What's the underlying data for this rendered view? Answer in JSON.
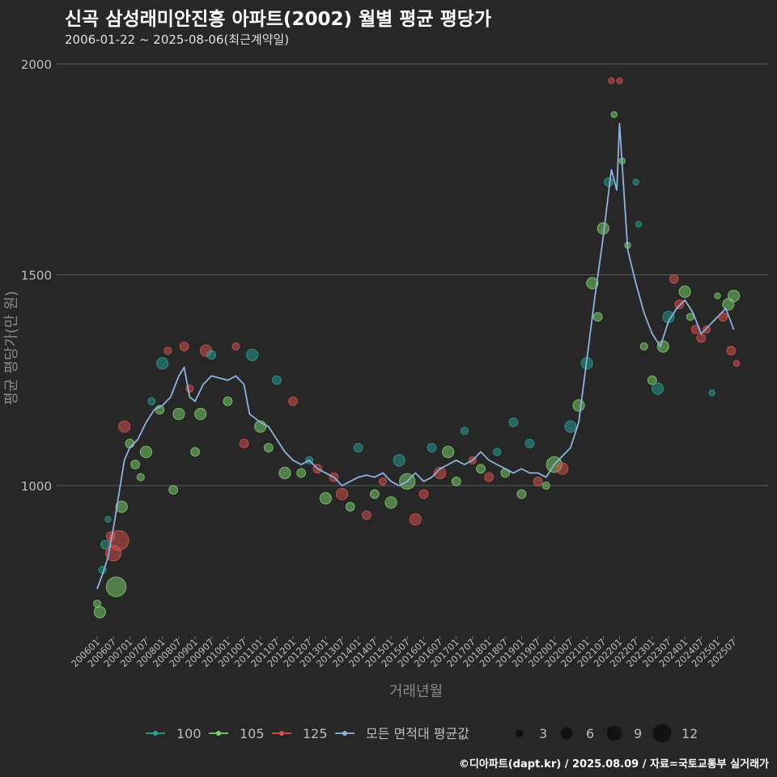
{
  "chart_data": {
    "type": "scatter",
    "title": "신곡 삼성래미안진흥 아파트(2002) 월별 평균 평당가",
    "subtitle": "2006-01-22 ~ 2025-08-06(최근계약일)",
    "xlabel": "거래년월",
    "ylabel": "평균 평당가(만 원)",
    "ylim": [
      650,
      2000
    ],
    "yticks": [
      1000,
      1500,
      2000
    ],
    "xticks": [
      "200601",
      "200607",
      "200701",
      "200707",
      "200801",
      "200807",
      "200901",
      "200907",
      "201001",
      "201007",
      "201101",
      "201107",
      "201201",
      "201207",
      "201301",
      "201307",
      "201401",
      "201407",
      "201501",
      "201507",
      "201601",
      "201607",
      "201701",
      "201707",
      "201801",
      "201807",
      "201901",
      "201907",
      "202001",
      "202007",
      "202101",
      "202107",
      "202201",
      "202207",
      "202301",
      "202307",
      "202401",
      "202407",
      "202501",
      "202507"
    ],
    "grid": true,
    "legend": {
      "series": [
        "100",
        "105",
        "125",
        "모든 면적대 평균값"
      ],
      "size_title": "",
      "sizes": [
        "3",
        "6",
        "9",
        "12"
      ],
      "position": "bottom"
    },
    "colors": {
      "100": "#2aa198",
      "105": "#7fd36f",
      "125": "#d9534f",
      "avg": "#8fb3dd"
    },
    "avg_line": [
      {
        "x": "200601",
        "y": 755
      },
      {
        "x": "200603",
        "y": 790
      },
      {
        "x": "200605",
        "y": 830
      },
      {
        "x": "200607",
        "y": 900
      },
      {
        "x": "200609",
        "y": 980
      },
      {
        "x": "200611",
        "y": 1060
      },
      {
        "x": "200701",
        "y": 1090
      },
      {
        "x": "200704",
        "y": 1110
      },
      {
        "x": "200707",
        "y": 1150
      },
      {
        "x": "200710",
        "y": 1180
      },
      {
        "x": "200801",
        "y": 1190
      },
      {
        "x": "200804",
        "y": 1210
      },
      {
        "x": "200807",
        "y": 1260
      },
      {
        "x": "200809",
        "y": 1280
      },
      {
        "x": "200811",
        "y": 1210
      },
      {
        "x": "200901",
        "y": 1200
      },
      {
        "x": "200904",
        "y": 1240
      },
      {
        "x": "200907",
        "y": 1260
      },
      {
        "x": "201001",
        "y": 1250
      },
      {
        "x": "201004",
        "y": 1260
      },
      {
        "x": "201007",
        "y": 1240
      },
      {
        "x": "201009",
        "y": 1170
      },
      {
        "x": "201101",
        "y": 1150
      },
      {
        "x": "201104",
        "y": 1140
      },
      {
        "x": "201107",
        "y": 1110
      },
      {
        "x": "201110",
        "y": 1080
      },
      {
        "x": "201201",
        "y": 1060
      },
      {
        "x": "201204",
        "y": 1050
      },
      {
        "x": "201207",
        "y": 1060
      },
      {
        "x": "201210",
        "y": 1040
      },
      {
        "x": "201301",
        "y": 1030
      },
      {
        "x": "201304",
        "y": 1020
      },
      {
        "x": "201307",
        "y": 1000
      },
      {
        "x": "201310",
        "y": 1010
      },
      {
        "x": "201401",
        "y": 1020
      },
      {
        "x": "201404",
        "y": 1025
      },
      {
        "x": "201407",
        "y": 1020
      },
      {
        "x": "201410",
        "y": 1030
      },
      {
        "x": "201501",
        "y": 1010
      },
      {
        "x": "201504",
        "y": 1000
      },
      {
        "x": "201507",
        "y": 1010
      },
      {
        "x": "201510",
        "y": 1030
      },
      {
        "x": "201601",
        "y": 1010
      },
      {
        "x": "201604",
        "y": 1020
      },
      {
        "x": "201607",
        "y": 1040
      },
      {
        "x": "201610",
        "y": 1050
      },
      {
        "x": "201701",
        "y": 1060
      },
      {
        "x": "201704",
        "y": 1050
      },
      {
        "x": "201707",
        "y": 1060
      },
      {
        "x": "201710",
        "y": 1080
      },
      {
        "x": "201801",
        "y": 1060
      },
      {
        "x": "201804",
        "y": 1050
      },
      {
        "x": "201807",
        "y": 1040
      },
      {
        "x": "201810",
        "y": 1030
      },
      {
        "x": "201901",
        "y": 1040
      },
      {
        "x": "201904",
        "y": 1030
      },
      {
        "x": "201907",
        "y": 1030
      },
      {
        "x": "201910",
        "y": 1020
      },
      {
        "x": "202001",
        "y": 1050
      },
      {
        "x": "202004",
        "y": 1070
      },
      {
        "x": "202007",
        "y": 1090
      },
      {
        "x": "202010",
        "y": 1150
      },
      {
        "x": "202101",
        "y": 1300
      },
      {
        "x": "202104",
        "y": 1450
      },
      {
        "x": "202107",
        "y": 1590
      },
      {
        "x": "202110",
        "y": 1750
      },
      {
        "x": "202112",
        "y": 1700
      },
      {
        "x": "202201",
        "y": 1860
      },
      {
        "x": "202204",
        "y": 1560
      },
      {
        "x": "202207",
        "y": 1480
      },
      {
        "x": "202210",
        "y": 1410
      },
      {
        "x": "202301",
        "y": 1360
      },
      {
        "x": "202304",
        "y": 1330
      },
      {
        "x": "202307",
        "y": 1390
      },
      {
        "x": "202310",
        "y": 1420
      },
      {
        "x": "202401",
        "y": 1440
      },
      {
        "x": "202404",
        "y": 1410
      },
      {
        "x": "202407",
        "y": 1360
      },
      {
        "x": "202410",
        "y": 1380
      },
      {
        "x": "202501",
        "y": 1400
      },
      {
        "x": "202504",
        "y": 1420
      },
      {
        "x": "202507",
        "y": 1370
      }
    ],
    "points": [
      {
        "x": "200601",
        "y": 720,
        "s": "105",
        "n": 3
      },
      {
        "x": "200602",
        "y": 700,
        "s": "105",
        "n": 6
      },
      {
        "x": "200603",
        "y": 800,
        "s": "100",
        "n": 3
      },
      {
        "x": "200604",
        "y": 860,
        "s": "100",
        "n": 4
      },
      {
        "x": "200605",
        "y": 920,
        "s": "100",
        "n": 2
      },
      {
        "x": "200606",
        "y": 880,
        "s": "125",
        "n": 4
      },
      {
        "x": "200607",
        "y": 840,
        "s": "125",
        "n": 9
      },
      {
        "x": "200608",
        "y": 760,
        "s": "105",
        "n": 12
      },
      {
        "x": "200609",
        "y": 870,
        "s": "125",
        "n": 12
      },
      {
        "x": "200610",
        "y": 950,
        "s": "105",
        "n": 6
      },
      {
        "x": "200611",
        "y": 1140,
        "s": "125",
        "n": 6
      },
      {
        "x": "200701",
        "y": 1100,
        "s": "105",
        "n": 4
      },
      {
        "x": "200703",
        "y": 1050,
        "s": "105",
        "n": 4
      },
      {
        "x": "200705",
        "y": 1020,
        "s": "105",
        "n": 3
      },
      {
        "x": "200707",
        "y": 1080,
        "s": "105",
        "n": 6
      },
      {
        "x": "200709",
        "y": 1200,
        "s": "100",
        "n": 3
      },
      {
        "x": "200712",
        "y": 1180,
        "s": "105",
        "n": 4
      },
      {
        "x": "200801",
        "y": 1290,
        "s": "100",
        "n": 6
      },
      {
        "x": "200803",
        "y": 1320,
        "s": "125",
        "n": 3
      },
      {
        "x": "200805",
        "y": 990,
        "s": "105",
        "n": 4
      },
      {
        "x": "200807",
        "y": 1170,
        "s": "105",
        "n": 6
      },
      {
        "x": "200809",
        "y": 1330,
        "s": "125",
        "n": 4
      },
      {
        "x": "200811",
        "y": 1230,
        "s": "125",
        "n": 3
      },
      {
        "x": "200901",
        "y": 1080,
        "s": "105",
        "n": 4
      },
      {
        "x": "200903",
        "y": 1170,
        "s": "105",
        "n": 6
      },
      {
        "x": "200905",
        "y": 1320,
        "s": "125",
        "n": 6
      },
      {
        "x": "200907",
        "y": 1310,
        "s": "100",
        "n": 4
      },
      {
        "x": "201001",
        "y": 1200,
        "s": "105",
        "n": 4
      },
      {
        "x": "201004",
        "y": 1330,
        "s": "125",
        "n": 3
      },
      {
        "x": "201007",
        "y": 1100,
        "s": "125",
        "n": 4
      },
      {
        "x": "201010",
        "y": 1310,
        "s": "100",
        "n": 6
      },
      {
        "x": "201101",
        "y": 1140,
        "s": "105",
        "n": 6
      },
      {
        "x": "201104",
        "y": 1090,
        "s": "105",
        "n": 4
      },
      {
        "x": "201107",
        "y": 1250,
        "s": "100",
        "n": 4
      },
      {
        "x": "201110",
        "y": 1030,
        "s": "105",
        "n": 6
      },
      {
        "x": "201201",
        "y": 1200,
        "s": "125",
        "n": 4
      },
      {
        "x": "201204",
        "y": 1030,
        "s": "105",
        "n": 4
      },
      {
        "x": "201207",
        "y": 1060,
        "s": "100",
        "n": 3
      },
      {
        "x": "201210",
        "y": 1040,
        "s": "125",
        "n": 4
      },
      {
        "x": "201301",
        "y": 970,
        "s": "105",
        "n": 6
      },
      {
        "x": "201304",
        "y": 1020,
        "s": "125",
        "n": 4
      },
      {
        "x": "201307",
        "y": 980,
        "s": "125",
        "n": 6
      },
      {
        "x": "201310",
        "y": 950,
        "s": "105",
        "n": 4
      },
      {
        "x": "201401",
        "y": 1090,
        "s": "100",
        "n": 4
      },
      {
        "x": "201404",
        "y": 930,
        "s": "125",
        "n": 4
      },
      {
        "x": "201407",
        "y": 980,
        "s": "105",
        "n": 4
      },
      {
        "x": "201410",
        "y": 1010,
        "s": "125",
        "n": 3
      },
      {
        "x": "201501",
        "y": 960,
        "s": "105",
        "n": 6
      },
      {
        "x": "201504",
        "y": 1060,
        "s": "100",
        "n": 6
      },
      {
        "x": "201507",
        "y": 1010,
        "s": "105",
        "n": 9
      },
      {
        "x": "201510",
        "y": 920,
        "s": "125",
        "n": 6
      },
      {
        "x": "201601",
        "y": 980,
        "s": "125",
        "n": 4
      },
      {
        "x": "201604",
        "y": 1090,
        "s": "100",
        "n": 4
      },
      {
        "x": "201607",
        "y": 1030,
        "s": "125",
        "n": 6
      },
      {
        "x": "201610",
        "y": 1080,
        "s": "105",
        "n": 6
      },
      {
        "x": "201701",
        "y": 1010,
        "s": "105",
        "n": 4
      },
      {
        "x": "201704",
        "y": 1130,
        "s": "100",
        "n": 3
      },
      {
        "x": "201707",
        "y": 1060,
        "s": "125",
        "n": 3
      },
      {
        "x": "201710",
        "y": 1040,
        "s": "105",
        "n": 4
      },
      {
        "x": "201801",
        "y": 1020,
        "s": "125",
        "n": 4
      },
      {
        "x": "201804",
        "y": 1080,
        "s": "100",
        "n": 3
      },
      {
        "x": "201807",
        "y": 1030,
        "s": "105",
        "n": 4
      },
      {
        "x": "201810",
        "y": 1150,
        "s": "100",
        "n": 4
      },
      {
        "x": "201901",
        "y": 980,
        "s": "105",
        "n": 4
      },
      {
        "x": "201904",
        "y": 1100,
        "s": "100",
        "n": 4
      },
      {
        "x": "201907",
        "y": 1010,
        "s": "125",
        "n": 4
      },
      {
        "x": "201910",
        "y": 1000,
        "s": "105",
        "n": 3
      },
      {
        "x": "202001",
        "y": 1050,
        "s": "105",
        "n": 9
      },
      {
        "x": "202004",
        "y": 1040,
        "s": "125",
        "n": 6
      },
      {
        "x": "202007",
        "y": 1140,
        "s": "100",
        "n": 6
      },
      {
        "x": "202010",
        "y": 1190,
        "s": "105",
        "n": 6
      },
      {
        "x": "202101",
        "y": 1290,
        "s": "100",
        "n": 6
      },
      {
        "x": "202103",
        "y": 1480,
        "s": "105",
        "n": 6
      },
      {
        "x": "202105",
        "y": 1400,
        "s": "105",
        "n": 4
      },
      {
        "x": "202107",
        "y": 1610,
        "s": "105",
        "n": 6
      },
      {
        "x": "202109",
        "y": 1720,
        "s": "100",
        "n": 4
      },
      {
        "x": "202110",
        "y": 1960,
        "s": "125",
        "n": 2
      },
      {
        "x": "202111",
        "y": 1880,
        "s": "105",
        "n": 2
      },
      {
        "x": "202201",
        "y": 1960,
        "s": "125",
        "n": 2
      },
      {
        "x": "202202",
        "y": 1770,
        "s": "105",
        "n": 2
      },
      {
        "x": "202204",
        "y": 1570,
        "s": "105",
        "n": 2
      },
      {
        "x": "202207",
        "y": 1720,
        "s": "100",
        "n": 2
      },
      {
        "x": "202208",
        "y": 1620,
        "s": "100",
        "n": 2
      },
      {
        "x": "202210",
        "y": 1330,
        "s": "105",
        "n": 3
      },
      {
        "x": "202301",
        "y": 1250,
        "s": "105",
        "n": 4
      },
      {
        "x": "202303",
        "y": 1230,
        "s": "100",
        "n": 6
      },
      {
        "x": "202305",
        "y": 1330,
        "s": "105",
        "n": 6
      },
      {
        "x": "202307",
        "y": 1400,
        "s": "100",
        "n": 6
      },
      {
        "x": "202309",
        "y": 1490,
        "s": "125",
        "n": 4
      },
      {
        "x": "202311",
        "y": 1430,
        "s": "125",
        "n": 4
      },
      {
        "x": "202401",
        "y": 1460,
        "s": "105",
        "n": 6
      },
      {
        "x": "202403",
        "y": 1400,
        "s": "105",
        "n": 3
      },
      {
        "x": "202405",
        "y": 1370,
        "s": "125",
        "n": 4
      },
      {
        "x": "202407",
        "y": 1350,
        "s": "125",
        "n": 4
      },
      {
        "x": "202409",
        "y": 1370,
        "s": "125",
        "n": 3
      },
      {
        "x": "202411",
        "y": 1220,
        "s": "100",
        "n": 2
      },
      {
        "x": "202501",
        "y": 1450,
        "s": "105",
        "n": 2
      },
      {
        "x": "202503",
        "y": 1400,
        "s": "125",
        "n": 4
      },
      {
        "x": "202505",
        "y": 1430,
        "s": "105",
        "n": 6
      },
      {
        "x": "202506",
        "y": 1320,
        "s": "125",
        "n": 4
      },
      {
        "x": "202507",
        "y": 1450,
        "s": "105",
        "n": 6
      },
      {
        "x": "202508",
        "y": 1290,
        "s": "125",
        "n": 2
      }
    ]
  },
  "caption": "©디아파트(dapt.kr) / 2025.08.09 / 자료=국토교통부 실거래가"
}
